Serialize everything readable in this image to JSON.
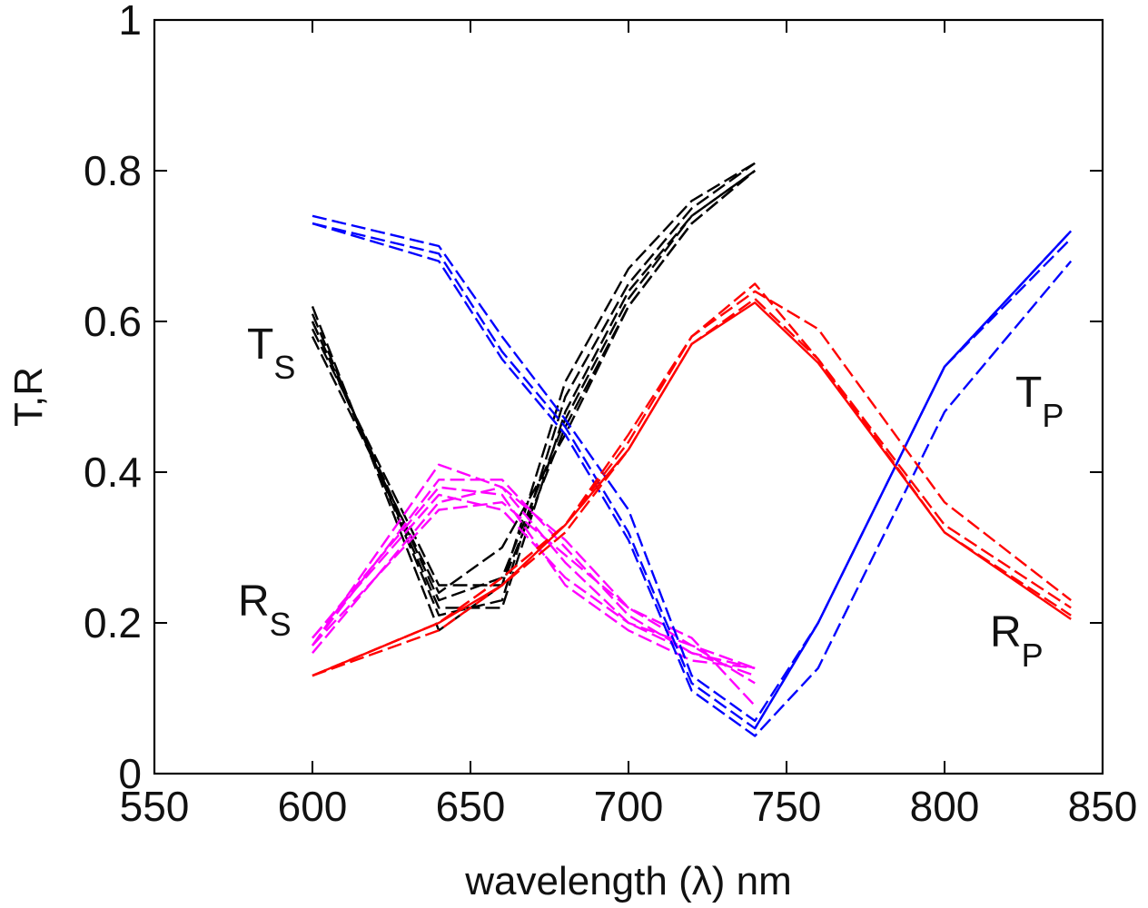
{
  "chart_data": {
    "type": "line",
    "title": "",
    "xlabel": "wavelength (λ) nm",
    "ylabel": "T,R",
    "xlim": [
      550,
      850
    ],
    "ylim": [
      0,
      1
    ],
    "xticks": [
      550,
      600,
      650,
      700,
      750,
      800,
      850
    ],
    "yticks": [
      0,
      0.2,
      0.4,
      0.6,
      0.8,
      1
    ],
    "xtick_labels": [
      "550",
      "600",
      "650",
      "700",
      "750",
      "800",
      "850"
    ],
    "ytick_labels": [
      "0",
      "0.2",
      "0.4",
      "0.6",
      "0.8",
      "1"
    ],
    "grid": false,
    "colors": {
      "Ts": "#000000",
      "Rs": "#ff00ff",
      "Tp": "#0000ff",
      "Rp": "#ff0000"
    },
    "annotations": [
      {
        "id": "ts",
        "main": "T",
        "sub": "S"
      },
      {
        "id": "rs",
        "main": "R",
        "sub": "S"
      },
      {
        "id": "tp",
        "main": "T",
        "sub": "P"
      },
      {
        "id": "rp",
        "main": "R",
        "sub": "P"
      }
    ],
    "series": [
      {
        "name": "Ts-1",
        "group": "Ts",
        "dash": "dashed",
        "x": [
          600,
          640,
          660,
          680,
          700,
          720,
          740
        ],
        "y": [
          0.62,
          0.19,
          0.25,
          0.52,
          0.67,
          0.76,
          0.81
        ]
      },
      {
        "name": "Ts-2",
        "group": "Ts",
        "dash": "dashed",
        "x": [
          600,
          640,
          660,
          680,
          700,
          720,
          740
        ],
        "y": [
          0.61,
          0.21,
          0.23,
          0.5,
          0.65,
          0.75,
          0.81
        ]
      },
      {
        "name": "Ts-3",
        "group": "Ts",
        "dash": "dashed",
        "x": [
          600,
          640,
          660,
          680,
          700,
          720,
          740
        ],
        "y": [
          0.6,
          0.22,
          0.22,
          0.48,
          0.64,
          0.74,
          0.8
        ]
      },
      {
        "name": "Ts-4",
        "group": "Ts",
        "dash": "dashed",
        "x": [
          600,
          640,
          660,
          680,
          700,
          720,
          740
        ],
        "y": [
          0.6,
          0.23,
          0.26,
          0.47,
          0.63,
          0.74,
          0.8
        ]
      },
      {
        "name": "Ts-5",
        "group": "Ts",
        "dash": "dashed",
        "x": [
          600,
          640,
          660,
          680,
          700,
          720,
          740
        ],
        "y": [
          0.59,
          0.25,
          0.25,
          0.46,
          0.62,
          0.73,
          0.8
        ]
      },
      {
        "name": "Ts-6",
        "group": "Ts",
        "dash": "dashed",
        "x": [
          600,
          640,
          660,
          680,
          700,
          720,
          740
        ],
        "y": [
          0.58,
          0.24,
          0.3,
          0.45,
          0.62,
          0.73,
          0.8
        ]
      },
      {
        "name": "Rs-1",
        "group": "Rs",
        "dash": "dashed",
        "x": [
          600,
          640,
          660,
          680,
          700,
          720,
          740
        ],
        "y": [
          0.17,
          0.41,
          0.38,
          0.28,
          0.2,
          0.16,
          0.14
        ]
      },
      {
        "name": "Rs-2",
        "group": "Rs",
        "dash": "dashed",
        "x": [
          600,
          640,
          660,
          680,
          700,
          720,
          740
        ],
        "y": [
          0.17,
          0.39,
          0.39,
          0.3,
          0.21,
          0.16,
          0.13
        ]
      },
      {
        "name": "Rs-3",
        "group": "Rs",
        "dash": "dashed",
        "x": [
          600,
          640,
          660,
          680,
          700,
          720,
          740
        ],
        "y": [
          0.18,
          0.38,
          0.37,
          0.25,
          0.19,
          0.15,
          0.14
        ]
      },
      {
        "name": "Rs-4",
        "group": "Rs",
        "dash": "dashed",
        "x": [
          600,
          640,
          660,
          680,
          700,
          720,
          740
        ],
        "y": [
          0.16,
          0.36,
          0.38,
          0.31,
          0.22,
          0.17,
          0.14
        ]
      },
      {
        "name": "Rs-5",
        "group": "Rs",
        "dash": "dashed",
        "x": [
          600,
          640,
          660,
          680,
          700,
          720,
          740
        ],
        "y": [
          0.18,
          0.37,
          0.35,
          0.26,
          0.2,
          0.17,
          0.12
        ]
      },
      {
        "name": "Rs-6",
        "group": "Rs",
        "dash": "dashed",
        "x": [
          600,
          640,
          660,
          680,
          700,
          720,
          740
        ],
        "y": [
          0.17,
          0.35,
          0.36,
          0.29,
          0.22,
          0.18,
          0.09
        ]
      },
      {
        "name": "Tp-1",
        "group": "Tp",
        "dash": "dashed",
        "x": [
          600,
          640,
          660,
          680,
          700,
          720,
          740,
          760,
          800,
          840
        ],
        "y": [
          0.74,
          0.7,
          0.58,
          0.47,
          0.35,
          0.13,
          0.07,
          0.2,
          0.54,
          0.72
        ]
      },
      {
        "name": "Tp-2",
        "group": "Tp",
        "dash": "dashed",
        "x": [
          600,
          640,
          660,
          680,
          700,
          720,
          740,
          760,
          800,
          840
        ],
        "y": [
          0.73,
          0.69,
          0.56,
          0.46,
          0.32,
          0.12,
          0.06,
          0.2,
          0.54,
          0.71
        ]
      },
      {
        "name": "Tp-3",
        "group": "Tp",
        "dash": "dashed",
        "x": [
          600,
          640,
          660,
          680,
          700,
          720,
          740,
          760,
          800,
          840
        ],
        "y": [
          0.73,
          0.68,
          0.55,
          0.45,
          0.31,
          0.11,
          0.05,
          0.14,
          0.48,
          0.68
        ]
      },
      {
        "name": "Tp-4",
        "group": "Tp",
        "dash": "solid",
        "x": [
          740,
          760,
          800,
          840
        ],
        "y": [
          0.06,
          0.2,
          0.54,
          0.72
        ]
      },
      {
        "name": "Rp-1",
        "group": "Rp",
        "dash": "dashed",
        "x": [
          600,
          640,
          660,
          680,
          700,
          720,
          740,
          760,
          800,
          840
        ],
        "y": [
          0.13,
          0.2,
          0.26,
          0.33,
          0.45,
          0.58,
          0.64,
          0.59,
          0.36,
          0.23
        ]
      },
      {
        "name": "Rp-2",
        "group": "Rp",
        "dash": "dashed",
        "x": [
          600,
          640,
          660,
          680,
          700,
          720,
          740,
          760,
          800,
          840
        ],
        "y": [
          0.13,
          0.2,
          0.26,
          0.33,
          0.44,
          0.58,
          0.65,
          0.55,
          0.32,
          0.21
        ]
      },
      {
        "name": "Rp-3",
        "group": "Rp",
        "dash": "dashed",
        "x": [
          600,
          640,
          660,
          680,
          700,
          720,
          740,
          760,
          800,
          840
        ],
        "y": [
          0.13,
          0.19,
          0.25,
          0.32,
          0.43,
          0.57,
          0.63,
          0.55,
          0.33,
          0.22
        ]
      },
      {
        "name": "Rp-4",
        "group": "Rp",
        "dash": "solid",
        "x": [
          600,
          640,
          660,
          680,
          700,
          720,
          740,
          760,
          800,
          840
        ],
        "y": [
          0.13,
          0.2,
          0.25,
          0.33,
          0.43,
          0.57,
          0.625,
          0.545,
          0.32,
          0.205
        ]
      }
    ]
  }
}
